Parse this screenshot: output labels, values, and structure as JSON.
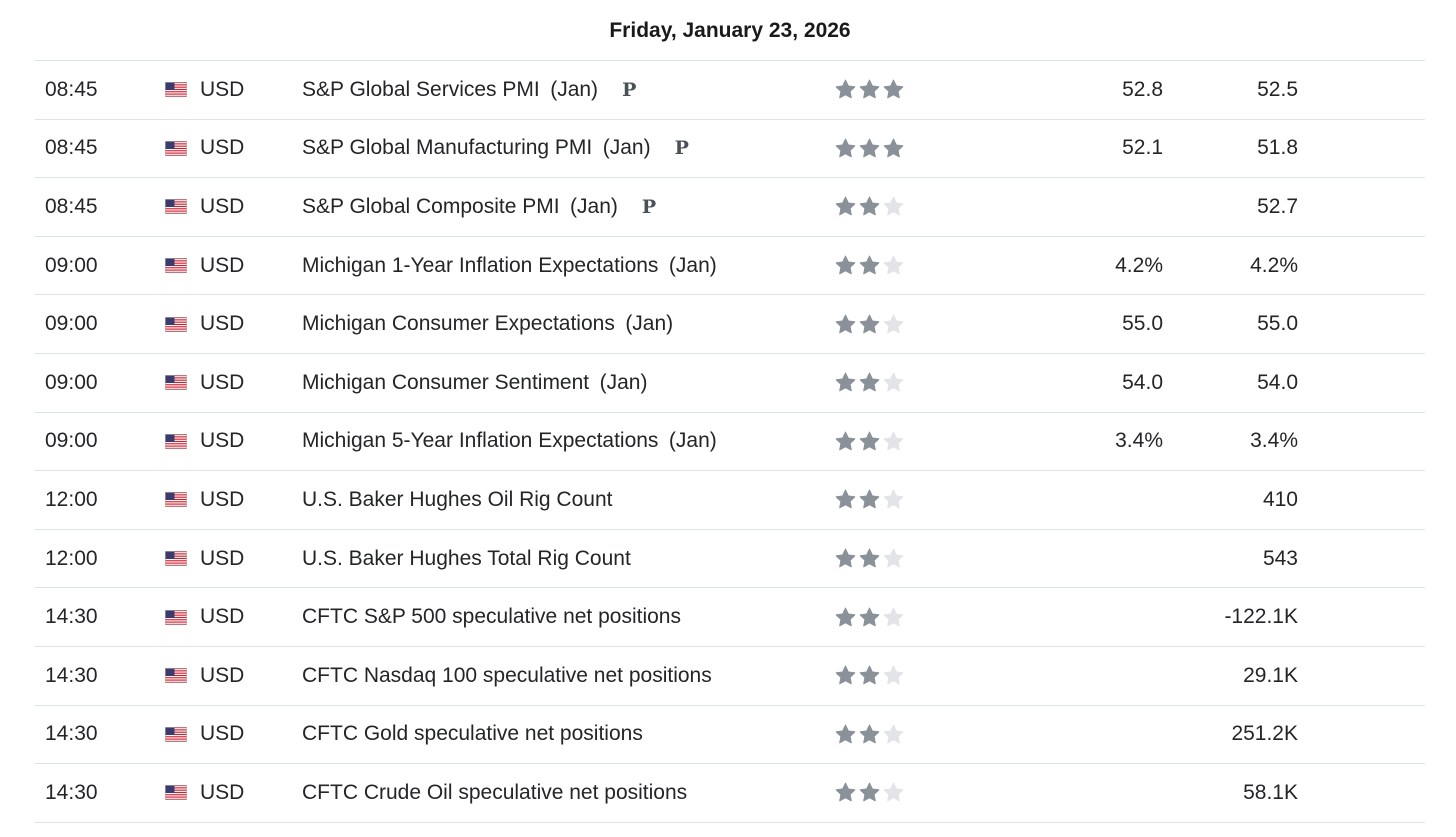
{
  "header": {
    "date_label": "Friday, January 23, 2026"
  },
  "colors": {
    "star_filled": "#8b9199",
    "star_empty": "#e2e4e7",
    "row_divider": "#d9e4ec"
  },
  "events": [
    {
      "time": "08:45",
      "flag": "us-flag-icon",
      "currency": "USD",
      "name": "S&P Global Services PMI (Jan)",
      "preliminary": "P",
      "importance": 3,
      "actual": "52.8",
      "forecast": "52.5"
    },
    {
      "time": "08:45",
      "flag": "us-flag-icon",
      "currency": "USD",
      "name": "S&P Global Manufacturing PMI (Jan)",
      "preliminary": "P",
      "importance": 3,
      "actual": "52.1",
      "forecast": "51.8"
    },
    {
      "time": "08:45",
      "flag": "us-flag-icon",
      "currency": "USD",
      "name": "S&P Global Composite PMI (Jan)",
      "preliminary": "P",
      "importance": 2,
      "actual": "",
      "forecast": "52.7"
    },
    {
      "time": "09:00",
      "flag": "us-flag-icon",
      "currency": "USD",
      "name": "Michigan 1-Year Inflation Expectations (Jan)",
      "preliminary": "",
      "importance": 2,
      "actual": "4.2%",
      "forecast": "4.2%"
    },
    {
      "time": "09:00",
      "flag": "us-flag-icon",
      "currency": "USD",
      "name": "Michigan Consumer Expectations (Jan)",
      "preliminary": "",
      "importance": 2,
      "actual": "55.0",
      "forecast": "55.0"
    },
    {
      "time": "09:00",
      "flag": "us-flag-icon",
      "currency": "USD",
      "name": "Michigan Consumer Sentiment (Jan)",
      "preliminary": "",
      "importance": 2,
      "actual": "54.0",
      "forecast": "54.0"
    },
    {
      "time": "09:00",
      "flag": "us-flag-icon",
      "currency": "USD",
      "name": "Michigan 5-Year Inflation Expectations (Jan)",
      "preliminary": "",
      "importance": 2,
      "actual": "3.4%",
      "forecast": "3.4%"
    },
    {
      "time": "12:00",
      "flag": "us-flag-icon",
      "currency": "USD",
      "name": "U.S. Baker Hughes Oil Rig Count",
      "preliminary": "",
      "importance": 2,
      "actual": "",
      "forecast": "410"
    },
    {
      "time": "12:00",
      "flag": "us-flag-icon",
      "currency": "USD",
      "name": "U.S. Baker Hughes Total Rig Count",
      "preliminary": "",
      "importance": 2,
      "actual": "",
      "forecast": "543"
    },
    {
      "time": "14:30",
      "flag": "us-flag-icon",
      "currency": "USD",
      "name": "CFTC S&P 500 speculative net positions",
      "preliminary": "",
      "importance": 2,
      "actual": "",
      "forecast": "-122.1K"
    },
    {
      "time": "14:30",
      "flag": "us-flag-icon",
      "currency": "USD",
      "name": "CFTC Nasdaq 100 speculative net positions",
      "preliminary": "",
      "importance": 2,
      "actual": "",
      "forecast": "29.1K"
    },
    {
      "time": "14:30",
      "flag": "us-flag-icon",
      "currency": "USD",
      "name": "CFTC Gold speculative net positions",
      "preliminary": "",
      "importance": 2,
      "actual": "",
      "forecast": "251.2K"
    },
    {
      "time": "14:30",
      "flag": "us-flag-icon",
      "currency": "USD",
      "name": "CFTC Crude Oil speculative net positions",
      "preliminary": "",
      "importance": 2,
      "actual": "",
      "forecast": "58.1K"
    }
  ]
}
